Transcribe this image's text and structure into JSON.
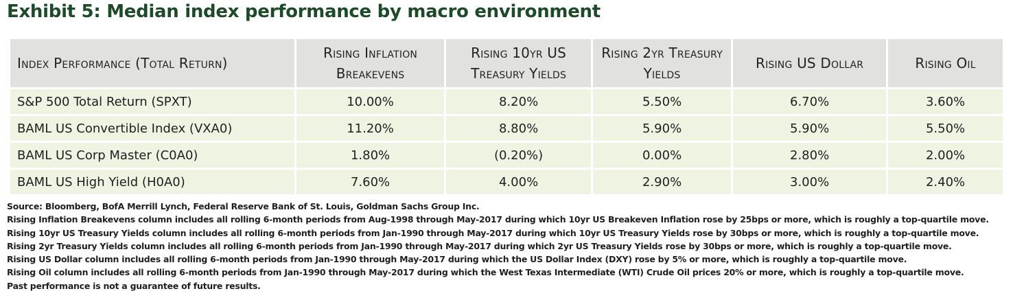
{
  "title": "Exhibit 5: Median index performance by macro environment",
  "table": {
    "headers": [
      "Index Performance (Total Return)",
      "Rising Inflation Breakevens",
      "Rising 10yr US Treasury Yields",
      "Rising 2yr Treasury Yields",
      "Rising US Dollar",
      "Rising Oil"
    ],
    "rows": [
      [
        "S&P 500 Total Return (SPXT)",
        "10.00%",
        "8.20%",
        "5.50%",
        "6.70%",
        "3.60%"
      ],
      [
        "BAML US Convertible Index (VXA0)",
        "11.20%",
        "8.80%",
        "5.90%",
        "5.90%",
        "5.50%"
      ],
      [
        "BAML US Corp Master (C0A0)",
        "1.80%",
        "(0.20%)",
        "0.00%",
        "2.80%",
        "2.00%"
      ],
      [
        "BAML US High Yield (H0A0)",
        "7.60%",
        "4.00%",
        "2.90%",
        "3.00%",
        "2.40%"
      ]
    ]
  },
  "notes": [
    "Source: Bloomberg, BofA Merrill Lynch, Federal Reserve Bank of St. Louis, Goldman Sachs Group Inc.",
    "Rising Inflation Breakevens column includes all rolling 6-month periods from Aug-1998 through May-2017 during which 10yr US Breakeven Inflation rose by 25bps or more, which is roughly a top-quartile move.",
    "Rising 10yr US Treasury Yields column includes all rolling 6-month periods from Jan-1990 through May-2017 during which 10yr US Treasury Yields rose by 30bps or more, which is roughly a top-quartile move.",
    "Rising 2yr Treasury Yields column includes all rolling 6-month periods from Jan-1990 through May-2017 during which 2yr US Treasury Yields rose by 30bps or more, which is roughly a top-quartile move.",
    "Rising US Dollar column includes all rolling 6-month periods from Jan-1990 through May-2017 during which the US Dollar Index (DXY) rose by 5% or more, which is roughly a top-quartile move.",
    "Rising Oil column includes all rolling 6-month periods from Jan-1990 through May-2017 during which the West Texas Intermediate (WTI) Crude Oil prices 20% or more, which is roughly a top-quartile move.",
    "Past performance is not a guarantee of future results."
  ]
}
